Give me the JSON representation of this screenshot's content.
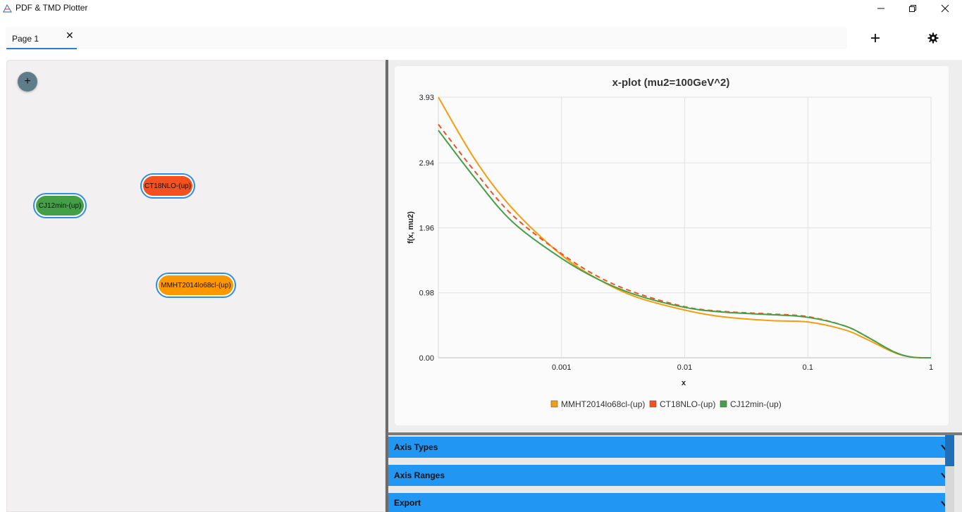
{
  "window": {
    "title": "PDF & TMD Plotter"
  },
  "tabs": [
    {
      "label": "Page 1",
      "close_symbol": "✕"
    }
  ],
  "toolbar": {
    "add_icon": "plus-icon",
    "settings_icon": "gear-icon"
  },
  "canvas": {
    "add_node_symbol": "+",
    "nodes": [
      {
        "label": "CT18NLO-(up)",
        "color": "#f4511e"
      },
      {
        "label": "CJ12min-(up)",
        "color": "#43a047"
      },
      {
        "label": "MMHT2014lo68cl-(up)",
        "color": "#fb9800"
      }
    ]
  },
  "chart_data": {
    "type": "line",
    "title": "x-plot (mu2=100GeV^2)",
    "xlabel": "x",
    "ylabel": "f(x, mu2)",
    "xscale": "log",
    "xlim": [
      0.0001,
      1
    ],
    "ylim": [
      0,
      3.93
    ],
    "x_ticks": [
      "0.001",
      "0.01",
      "0.1",
      "1"
    ],
    "y_ticks": [
      "0.00",
      "0.98",
      "1.96",
      "2.94",
      "3.93"
    ],
    "grid": true,
    "legend_position": "bottom",
    "series": [
      {
        "name": "MMHT2014lo68cl-(up)",
        "color": "#f59d0e",
        "dashed": false,
        "x": [
          0.0001,
          0.0002,
          0.0004,
          0.001,
          0.002,
          0.004,
          0.01,
          0.02,
          0.05,
          0.1,
          0.2,
          0.3,
          0.5,
          0.7,
          1
        ],
        "y": [
          3.93,
          2.98,
          2.25,
          1.55,
          1.18,
          0.92,
          0.72,
          0.62,
          0.56,
          0.54,
          0.42,
          0.28,
          0.08,
          0.01,
          0.0
        ]
      },
      {
        "name": "CT18NLO-(up)",
        "color": "#f4511e",
        "dashed": true,
        "x": [
          0.0001,
          0.0002,
          0.0004,
          0.001,
          0.002,
          0.004,
          0.01,
          0.02,
          0.05,
          0.1,
          0.2,
          0.3,
          0.5,
          0.7,
          1
        ],
        "y": [
          3.52,
          2.8,
          2.15,
          1.57,
          1.22,
          0.98,
          0.77,
          0.7,
          0.66,
          0.62,
          0.48,
          0.32,
          0.09,
          0.01,
          0.0
        ]
      },
      {
        "name": "CJ12min-(up)",
        "color": "#43a047",
        "dashed": false,
        "x": [
          0.0001,
          0.0002,
          0.0004,
          0.001,
          0.002,
          0.004,
          0.01,
          0.02,
          0.05,
          0.1,
          0.2,
          0.3,
          0.5,
          0.7,
          1
        ],
        "y": [
          3.43,
          2.7,
          2.05,
          1.5,
          1.18,
          0.95,
          0.76,
          0.69,
          0.65,
          0.61,
          0.48,
          0.32,
          0.09,
          0.01,
          0.0
        ]
      }
    ]
  },
  "accordions": [
    {
      "label": "Axis Types"
    },
    {
      "label": "Axis Ranges"
    },
    {
      "label": "Export"
    }
  ]
}
